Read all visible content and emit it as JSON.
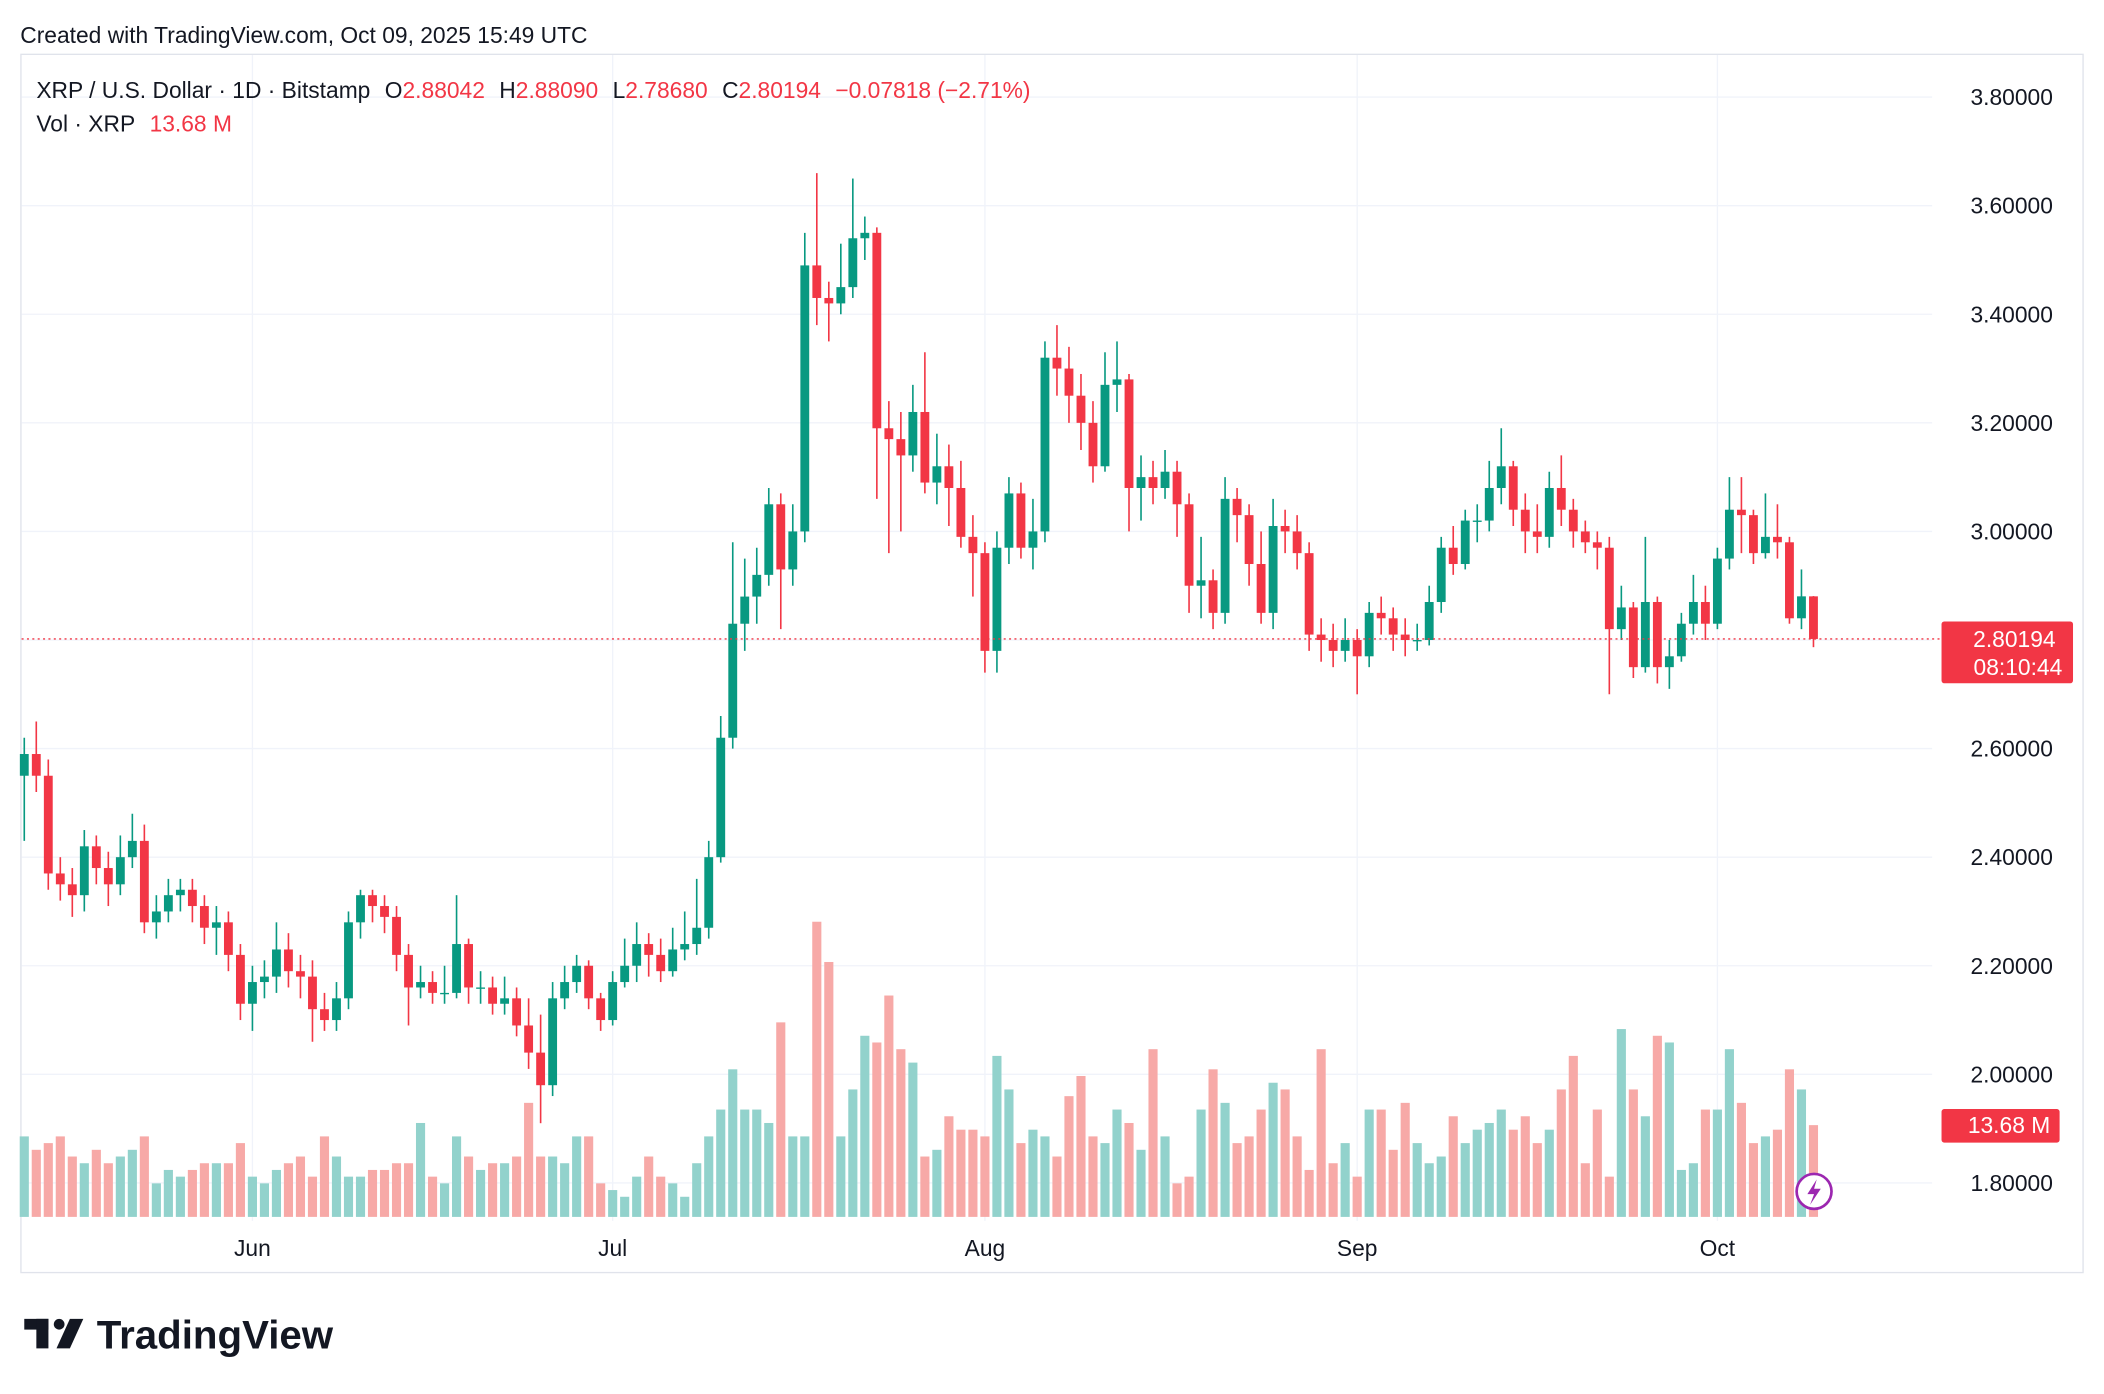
{
  "header": {
    "created": "Created with TradingView.com, Oct 09, 2025 15:49 UTC",
    "brand": "TradingView"
  },
  "chart_data": {
    "type": "candlestick",
    "title": "XRP / U.S. Dollar · 1D · Bitstamp",
    "legend": {
      "o_key": "O",
      "o": "2.88042",
      "h_key": "H",
      "h": "2.88090",
      "l_key": "L",
      "l": "2.78680",
      "c_key": "C",
      "c": "2.80194",
      "change": "−0.07818 (−2.71%)",
      "vol_name": "Vol · XRP",
      "vol": "13.68 M"
    },
    "price_tag": "2.80194",
    "countdown": "08:10:44",
    "last_price": 2.80194,
    "volume_tag": "13.68 M",
    "up_color": "#089981",
    "down_color": "#f23645",
    "volume_up_color": "#92d2cc",
    "volume_down_color": "#f7a9a7",
    "grid": true,
    "ylim": [
      1.73,
      3.88
    ],
    "yticks": [
      {
        "value": 1.8,
        "label": "1.80000"
      },
      {
        "value": 2.0,
        "label": "2.00000"
      },
      {
        "value": 2.2,
        "label": "2.20000"
      },
      {
        "value": 2.4,
        "label": "2.40000"
      },
      {
        "value": 2.6,
        "label": "2.60000"
      },
      {
        "value": 2.8,
        "label": "2.80000"
      },
      {
        "value": 3.0,
        "label": "3.00000"
      },
      {
        "value": 3.2,
        "label": "3.20000"
      },
      {
        "value": 3.4,
        "label": "3.40000"
      },
      {
        "value": 3.6,
        "label": "3.60000"
      },
      {
        "value": 3.8,
        "label": "3.80000"
      }
    ],
    "categories": [
      null,
      null,
      null,
      null,
      null,
      null,
      null,
      null,
      null,
      null,
      null,
      null,
      null,
      null,
      null,
      null,
      null,
      null,
      null,
      "Jun",
      null,
      null,
      null,
      null,
      null,
      null,
      null,
      null,
      null,
      null,
      null,
      null,
      null,
      null,
      null,
      null,
      null,
      null,
      null,
      null,
      null,
      null,
      null,
      null,
      null,
      null,
      null,
      null,
      null,
      "Jul",
      null,
      null,
      null,
      null,
      null,
      null,
      null,
      null,
      null,
      null,
      null,
      null,
      null,
      null,
      null,
      null,
      null,
      null,
      null,
      null,
      null,
      null,
      null,
      null,
      null,
      null,
      null,
      null,
      null,
      null,
      "Aug",
      null,
      null,
      null,
      null,
      null,
      null,
      null,
      null,
      null,
      null,
      null,
      null,
      null,
      null,
      null,
      null,
      null,
      null,
      null,
      null,
      null,
      null,
      null,
      null,
      null,
      null,
      null,
      null,
      null,
      null,
      "Sep",
      null,
      null,
      null,
      null,
      null,
      null,
      null,
      null,
      null,
      null,
      null,
      null,
      null,
      null,
      null,
      null,
      null,
      null,
      null,
      null,
      null,
      null,
      null,
      null,
      null,
      null,
      null,
      null,
      null,
      "Oct",
      null,
      null,
      null,
      null,
      null,
      null,
      null,
      null
    ],
    "open": [
      2.55,
      2.59,
      2.55,
      2.37,
      2.35,
      2.33,
      2.42,
      2.38,
      2.35,
      2.4,
      2.43,
      2.28,
      2.3,
      2.33,
      2.34,
      2.31,
      2.27,
      2.28,
      2.22,
      2.13,
      2.17,
      2.18,
      2.23,
      2.19,
      2.18,
      2.12,
      2.1,
      2.14,
      2.28,
      2.33,
      2.31,
      2.29,
      2.22,
      2.16,
      2.17,
      2.15,
      2.15,
      2.24,
      2.16,
      2.16,
      2.13,
      2.14,
      2.09,
      2.04,
      1.98,
      2.14,
      2.17,
      2.2,
      2.14,
      2.1,
      2.17,
      2.2,
      2.24,
      2.22,
      2.19,
      2.23,
      2.24,
      2.27,
      2.4,
      2.62,
      2.83,
      2.88,
      2.92,
      3.05,
      2.93,
      3.0,
      3.49,
      3.43,
      3.42,
      3.45,
      3.54,
      3.55,
      3.19,
      3.17,
      3.14,
      3.22,
      3.09,
      3.12,
      3.08,
      2.99,
      2.96,
      2.78,
      2.97,
      3.07,
      2.97,
      3.0,
      3.32,
      3.3,
      3.25,
      3.2,
      3.12,
      3.27,
      3.28,
      3.08,
      3.1,
      3.08,
      3.11,
      3.05,
      2.9,
      2.91,
      2.85,
      3.06,
      3.03,
      2.94,
      2.85,
      3.01,
      3.0,
      2.96,
      2.81,
      2.8,
      2.78,
      2.8,
      2.77,
      2.85,
      2.84,
      2.81,
      2.8,
      2.8,
      2.87,
      2.97,
      2.94,
      3.02,
      3.02,
      3.08,
      3.12,
      3.04,
      3.0,
      2.99,
      3.08,
      3.04,
      3.0,
      2.98,
      2.97,
      2.82,
      2.86,
      2.75,
      2.87,
      2.75,
      2.77,
      2.83,
      2.87,
      2.83,
      2.95,
      3.04,
      3.03,
      2.96,
      2.99,
      2.98,
      2.84,
      2.88042
    ],
    "high": [
      2.62,
      2.65,
      2.58,
      2.4,
      2.38,
      2.45,
      2.44,
      2.41,
      2.44,
      2.48,
      2.46,
      2.33,
      2.36,
      2.36,
      2.36,
      2.33,
      2.31,
      2.3,
      2.24,
      2.2,
      2.21,
      2.28,
      2.26,
      2.22,
      2.21,
      2.15,
      2.17,
      2.3,
      2.34,
      2.34,
      2.33,
      2.31,
      2.24,
      2.2,
      2.19,
      2.2,
      2.33,
      2.25,
      2.19,
      2.18,
      2.18,
      2.16,
      2.14,
      2.11,
      2.17,
      2.2,
      2.22,
      2.21,
      2.15,
      2.19,
      2.25,
      2.28,
      2.26,
      2.25,
      2.27,
      2.3,
      2.36,
      2.43,
      2.66,
      2.98,
      2.95,
      2.97,
      3.08,
      3.07,
      3.05,
      3.55,
      3.66,
      3.46,
      3.53,
      3.65,
      3.58,
      3.56,
      3.24,
      3.22,
      3.27,
      3.33,
      3.18,
      3.16,
      3.13,
      3.03,
      2.98,
      3.0,
      3.1,
      3.09,
      3.06,
      3.35,
      3.38,
      3.34,
      3.29,
      3.24,
      3.33,
      3.35,
      3.29,
      3.14,
      3.13,
      3.15,
      3.13,
      3.07,
      2.99,
      2.93,
      3.1,
      3.08,
      3.05,
      3.0,
      3.06,
      3.04,
      3.03,
      2.98,
      2.84,
      2.83,
      2.84,
      2.82,
      2.87,
      2.88,
      2.86,
      2.84,
      2.83,
      2.9,
      2.99,
      3.01,
      3.04,
      3.05,
      3.13,
      3.19,
      3.13,
      3.07,
      3.05,
      3.11,
      3.14,
      3.06,
      3.02,
      3.0,
      2.99,
      2.9,
      2.87,
      2.99,
      2.88,
      2.8,
      2.85,
      2.92,
      2.9,
      2.97,
      3.1,
      3.1,
      3.04,
      3.07,
      3.05,
      2.99,
      2.93,
      2.8809
    ],
    "low": [
      2.43,
      2.52,
      2.34,
      2.32,
      2.29,
      2.3,
      2.35,
      2.31,
      2.33,
      2.38,
      2.26,
      2.25,
      2.28,
      2.3,
      2.28,
      2.24,
      2.22,
      2.19,
      2.1,
      2.08,
      2.14,
      2.15,
      2.16,
      2.14,
      2.06,
      2.08,
      2.08,
      2.12,
      2.25,
      2.28,
      2.26,
      2.19,
      2.09,
      2.14,
      2.13,
      2.13,
      2.14,
      2.13,
      2.13,
      2.11,
      2.11,
      2.07,
      2.01,
      1.91,
      1.96,
      2.12,
      2.15,
      2.12,
      2.08,
      2.09,
      2.16,
      2.17,
      2.18,
      2.17,
      2.18,
      2.21,
      2.22,
      2.25,
      2.39,
      2.6,
      2.78,
      2.83,
      2.9,
      2.82,
      2.9,
      2.98,
      3.38,
      3.35,
      3.4,
      3.43,
      3.5,
      3.06,
      2.96,
      3.0,
      3.11,
      3.07,
      3.05,
      3.01,
      2.97,
      2.88,
      2.74,
      2.74,
      2.94,
      2.95,
      2.93,
      2.98,
      3.25,
      3.2,
      3.15,
      3.09,
      3.11,
      3.22,
      3.0,
      3.02,
      3.05,
      3.06,
      2.99,
      2.85,
      2.84,
      2.82,
      2.83,
      2.98,
      2.9,
      2.83,
      2.82,
      2.96,
      2.93,
      2.78,
      2.76,
      2.75,
      2.76,
      2.7,
      2.75,
      2.81,
      2.78,
      2.77,
      2.78,
      2.79,
      2.85,
      2.92,
      2.93,
      2.98,
      3.0,
      3.05,
      3.01,
      2.96,
      2.96,
      2.97,
      3.01,
      2.97,
      2.96,
      2.93,
      2.7,
      2.8,
      2.73,
      2.74,
      2.72,
      2.71,
      2.76,
      2.81,
      2.8,
      2.82,
      2.93,
      2.96,
      2.94,
      2.95,
      2.95,
      2.83,
      2.82,
      2.7868
    ],
    "close": [
      2.59,
      2.55,
      2.37,
      2.35,
      2.33,
      2.42,
      2.38,
      2.35,
      2.4,
      2.43,
      2.28,
      2.3,
      2.33,
      2.34,
      2.31,
      2.27,
      2.28,
      2.22,
      2.13,
      2.17,
      2.18,
      2.23,
      2.19,
      2.18,
      2.12,
      2.1,
      2.14,
      2.28,
      2.33,
      2.31,
      2.29,
      2.22,
      2.16,
      2.17,
      2.15,
      2.15,
      2.24,
      2.16,
      2.16,
      2.13,
      2.14,
      2.09,
      2.04,
      1.98,
      2.14,
      2.17,
      2.2,
      2.14,
      2.1,
      2.17,
      2.2,
      2.24,
      2.22,
      2.19,
      2.23,
      2.24,
      2.27,
      2.4,
      2.62,
      2.83,
      2.88,
      2.92,
      3.05,
      2.93,
      3.0,
      3.49,
      3.43,
      3.42,
      3.45,
      3.54,
      3.55,
      3.19,
      3.17,
      3.14,
      3.22,
      3.09,
      3.12,
      3.08,
      2.99,
      2.96,
      2.78,
      2.97,
      3.07,
      2.97,
      3.0,
      3.32,
      3.3,
      3.25,
      3.2,
      3.12,
      3.27,
      3.28,
      3.08,
      3.1,
      3.08,
      3.11,
      3.05,
      2.9,
      2.91,
      2.85,
      3.06,
      3.03,
      2.94,
      2.85,
      3.01,
      3.0,
      2.96,
      2.81,
      2.8,
      2.78,
      2.8,
      2.77,
      2.85,
      2.84,
      2.81,
      2.8,
      2.8,
      2.87,
      2.97,
      2.94,
      3.02,
      3.02,
      3.08,
      3.12,
      3.04,
      3.0,
      2.99,
      3.08,
      3.04,
      3.0,
      2.98,
      2.97,
      2.82,
      2.86,
      2.75,
      2.87,
      2.75,
      2.77,
      2.83,
      2.87,
      2.83,
      2.95,
      3.04,
      3.03,
      2.96,
      2.99,
      2.98,
      2.84,
      2.88042,
      2.80194
    ],
    "volume": [
      12,
      10,
      11,
      12,
      9,
      8,
      10,
      8,
      9,
      10,
      12,
      5,
      7,
      6,
      7,
      8,
      8,
      8,
      11,
      6,
      5,
      7,
      8,
      9,
      6,
      12,
      9,
      6,
      6,
      7,
      7,
      8,
      8,
      14,
      6,
      5,
      12,
      9,
      7,
      8,
      8,
      9,
      17,
      9,
      9,
      8,
      12,
      12,
      5,
      4,
      3,
      6,
      9,
      6,
      5,
      3,
      8,
      12,
      16,
      22,
      16,
      16,
      14,
      29,
      12,
      12,
      44,
      38,
      12,
      19,
      27,
      26,
      33,
      25,
      23,
      9,
      10,
      15,
      13,
      13,
      12,
      24,
      19,
      11,
      13,
      12,
      9,
      18,
      21,
      12,
      11,
      16,
      14,
      10,
      25,
      12,
      5,
      6,
      16,
      22,
      17,
      11,
      12,
      16,
      20,
      19,
      12,
      7,
      25,
      8,
      11,
      6,
      16,
      16,
      10,
      17,
      11,
      8,
      9,
      15,
      11,
      13,
      14,
      16,
      13,
      15,
      11,
      13,
      19,
      24,
      8,
      16,
      6,
      28,
      19,
      15,
      27,
      26,
      7,
      8,
      16,
      16,
      25,
      17,
      11,
      12,
      13,
      22,
      19,
      13.68
    ]
  }
}
